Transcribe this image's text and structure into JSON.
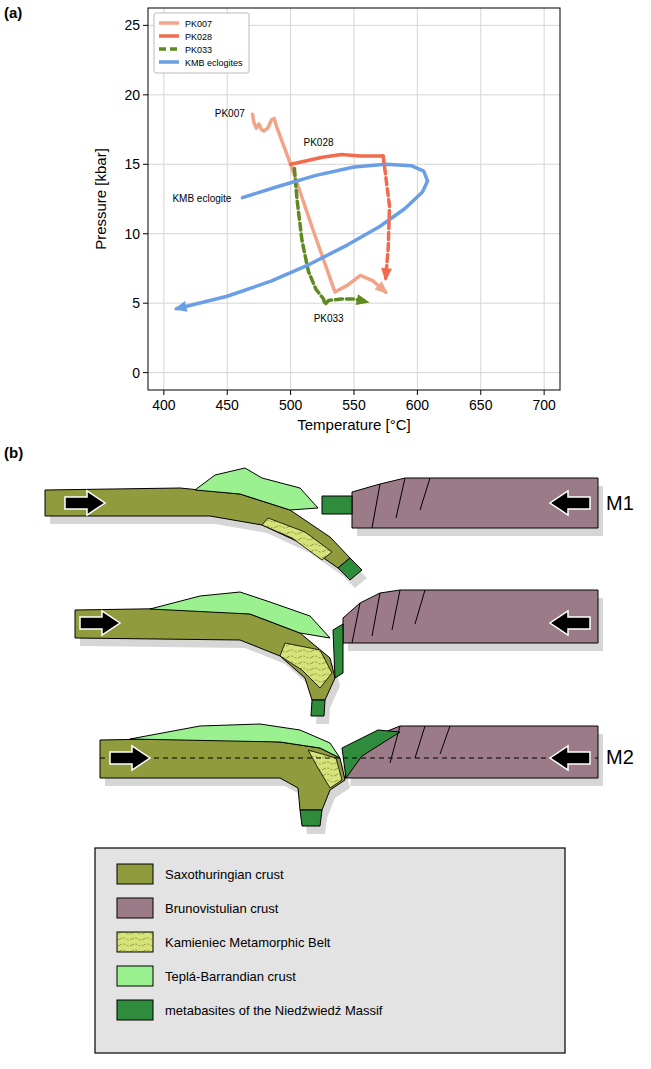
{
  "chart_data": {
    "type": "line",
    "label": "(a)",
    "x_label": "Temperature [°C]",
    "y_label": "Pressure [kbar]",
    "xlim": [
      387.5,
      712.5
    ],
    "ylim": [
      -1.25,
      26.25
    ],
    "xticks": [
      400,
      450,
      500,
      550,
      600,
      650,
      700
    ],
    "yticks": [
      0,
      5,
      10,
      15,
      20,
      25
    ],
    "grid": true,
    "legend": "upper left",
    "series": [
      {
        "name": "PK007",
        "color": "#f2a488",
        "line_style": "solid",
        "marker": "none",
        "x": [
          470,
          471,
          473,
          475,
          477,
          479,
          482,
          485,
          487,
          489,
          500,
          518,
          535,
          545,
          555,
          565
        ],
        "values": [
          18.6,
          18.0,
          17.6,
          17.9,
          17.5,
          17.4,
          17.6,
          18.2,
          18.3,
          17.7,
          15.0,
          10.2,
          5.8,
          6.3,
          7.0,
          6.6
        ]
      },
      {
        "name": "PK028",
        "color": "#f26b4f",
        "line_style": "solid",
        "marker": "none",
        "x": [
          500,
          510,
          525,
          540,
          555,
          573
        ],
        "values": [
          15.0,
          15.2,
          15.5,
          15.7,
          15.6,
          15.6
        ]
      },
      {
        "name": "PK033",
        "color": "#5e8a22",
        "line_style": "dashed",
        "marker": "arrow",
        "x": [
          503,
          505,
          509,
          514,
          520,
          526,
          527,
          530,
          540,
          550,
          560
        ],
        "values": [
          14.7,
          12.5,
          9.5,
          7.3,
          6.0,
          5.3,
          4.9,
          5.2,
          5.3,
          5.3,
          5.1
        ]
      },
      {
        "name": "KMB eclogites",
        "color": "#6a9fe6",
        "line_style": "solid",
        "marker": "arrow",
        "x": [
          462,
          490,
          520,
          550,
          575,
          595,
          605,
          608,
          604,
          590,
          570,
          545,
          515,
          485,
          450,
          410
        ],
        "values": [
          12.6,
          13.4,
          14.2,
          14.8,
          15.0,
          14.9,
          14.5,
          13.8,
          13.0,
          11.8,
          10.5,
          9.2,
          7.8,
          6.6,
          5.5,
          4.6
        ]
      },
      {
        "name": null,
        "color": "#f2a488",
        "line_style": "dashed",
        "marker": "arrow",
        "x": [
          565,
          575
        ],
        "values": [
          6.6,
          5.8
        ]
      },
      {
        "name": null,
        "color": "#f26b4f",
        "line_style": "dashed",
        "marker": "arrow",
        "x": [
          573,
          578,
          577,
          575
        ],
        "values": [
          15.6,
          12.0,
          9.0,
          6.8
        ]
      }
    ],
    "annotations": [
      {
        "text": "PK007",
        "x": 452,
        "y": 18.7
      },
      {
        "text": "PK028",
        "x": 522,
        "y": 16.6
      },
      {
        "text": "PK033",
        "x": 530,
        "y": 3.9
      },
      {
        "text": "KMB eclogite",
        "x": 430,
        "y": 12.6
      }
    ]
  },
  "diagram": {
    "label": "(b)",
    "stages": [
      {
        "label": "M1"
      },
      {
        "label": null
      },
      {
        "label": "M2"
      }
    ],
    "legend": [
      {
        "name": "Saxothuringian crust",
        "color": "#8f9b3c"
      },
      {
        "name": "Brunovistulian crust",
        "color": "#9b7b87"
      },
      {
        "name": "Kamieniec Metamorphic Belt",
        "color": "#d6e27a"
      },
      {
        "name": "Teplá-Barrandian crust",
        "color": "#9bf090"
      },
      {
        "name": "metabasites of the Niedźwiedź Massif",
        "color": "#2f8c3c"
      }
    ]
  }
}
